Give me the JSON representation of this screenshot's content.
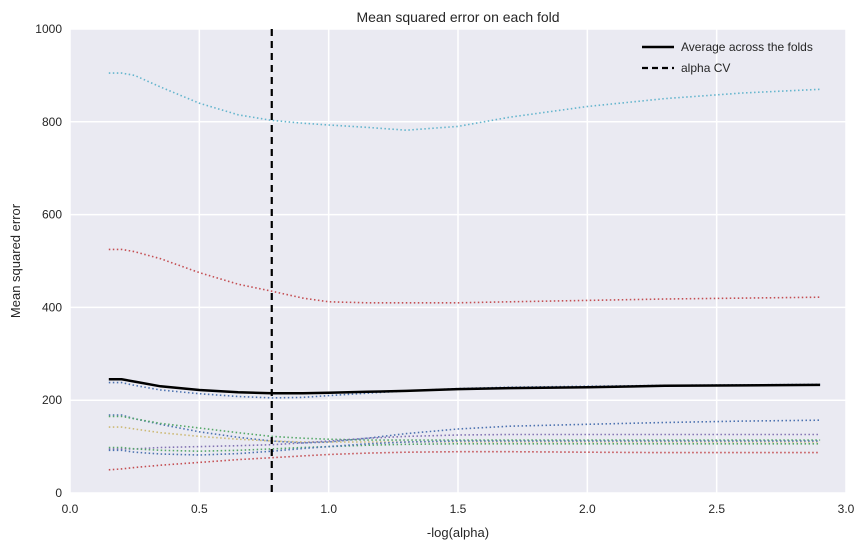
{
  "chart_data": {
    "type": "line",
    "title": "Mean squared error on each fold",
    "xlabel": "-log(alpha)",
    "ylabel": "Mean squared error",
    "xlim": [
      0.0,
      3.0
    ],
    "ylim": [
      0,
      1000
    ],
    "xticks": [
      "0.0",
      "0.5",
      "1.0",
      "1.5",
      "2.0",
      "2.5",
      "3.0"
    ],
    "yticks": [
      "0",
      "200",
      "400",
      "600",
      "800",
      "1000"
    ],
    "grid": true,
    "legend_position": "top-right",
    "colors": {
      "background": "#EAEAF2",
      "grid": "#FFFFFF",
      "average": "#000000",
      "alpha_cv": "#000000"
    },
    "x": [
      0.15,
      0.2,
      0.25,
      0.35,
      0.5,
      0.65,
      0.78,
      0.9,
      1.0,
      1.15,
      1.3,
      1.5,
      1.7,
      2.0,
      2.3,
      2.6,
      2.9
    ],
    "folds": [
      {
        "color": "#64B5CD",
        "values": [
          905,
          905,
          900,
          875,
          840,
          815,
          803,
          797,
          793,
          788,
          782,
          790,
          810,
          833,
          850,
          862,
          870
        ]
      },
      {
        "color": "#C44E52",
        "values": [
          525,
          525,
          520,
          505,
          475,
          450,
          435,
          420,
          412,
          410,
          410,
          410,
          412,
          415,
          418,
          420,
          422
        ]
      },
      {
        "color": "#4C72B0",
        "values": [
          238,
          238,
          232,
          222,
          214,
          208,
          205,
          206,
          210,
          215,
          220,
          225,
          228,
          230,
          232,
          233,
          234
        ]
      },
      {
        "color": "#4C72B0",
        "values": [
          168,
          168,
          160,
          148,
          132,
          120,
          112,
          108,
          110,
          118,
          128,
          138,
          144,
          148,
          152,
          155,
          157
        ]
      },
      {
        "color": "#55A868",
        "values": [
          165,
          165,
          160,
          150,
          140,
          130,
          122,
          118,
          116,
          114,
          114,
          114,
          114,
          114,
          114,
          114,
          114
        ]
      },
      {
        "color": "#CCB974",
        "values": [
          142,
          142,
          138,
          130,
          122,
          116,
          112,
          110,
          110,
          110,
          110,
          110,
          110,
          110,
          110,
          110,
          110
        ]
      },
      {
        "color": "#8172B2",
        "values": [
          95,
          95,
          95,
          98,
          100,
          102,
          104,
          108,
          112,
          118,
          122,
          125,
          126,
          126,
          126,
          126,
          126
        ]
      },
      {
        "color": "#55A868",
        "values": [
          98,
          98,
          95,
          92,
          90,
          92,
          95,
          98,
          100,
          103,
          105,
          106,
          106,
          106,
          106,
          106,
          106
        ]
      },
      {
        "color": "#4C72B0",
        "values": [
          92,
          92,
          88,
          84,
          82,
          85,
          90,
          96,
          100,
          106,
          110,
          112,
          112,
          112,
          112,
          112,
          112
        ]
      },
      {
        "color": "#C44E52",
        "values": [
          50,
          52,
          55,
          60,
          66,
          72,
          76,
          80,
          83,
          86,
          88,
          89,
          89,
          88,
          87,
          87,
          87
        ]
      }
    ],
    "average": {
      "name": "Average across the folds",
      "values": [
        245,
        245,
        240,
        230,
        222,
        217,
        215,
        215,
        216,
        218,
        220,
        224,
        226,
        228,
        231,
        232,
        233
      ]
    },
    "alpha_cv": {
      "name": "alpha CV",
      "x": 0.78
    }
  }
}
